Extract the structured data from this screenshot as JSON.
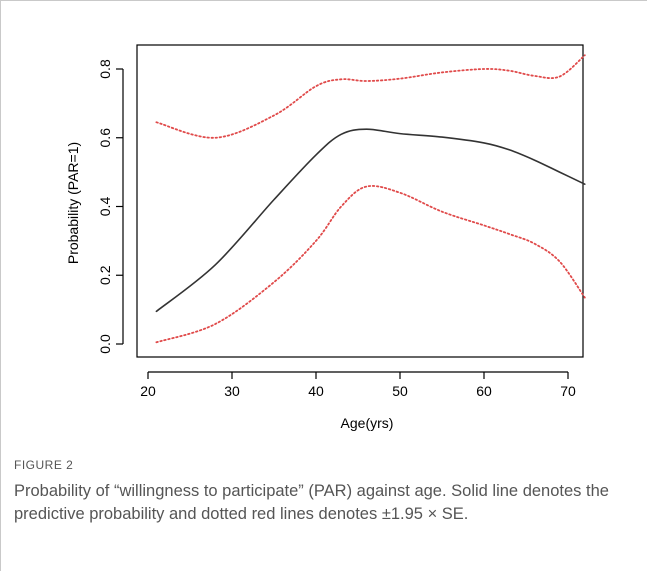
{
  "figure": {
    "label": "FIGURE 2",
    "caption": "Probability of “willingness to participate” (PAR) against age. Solid line denotes the predictive probability and dotted red lines denotes ±1.95 × SE."
  },
  "colors": {
    "prediction_line": "#333333",
    "confidence_line": "#e04a4a",
    "axis": "#000000"
  },
  "chart_data": {
    "type": "line",
    "xlabel": "Age(yrs)",
    "ylabel": "Probability (PAR=1)",
    "xlim": [
      21,
      72
    ],
    "ylim": [
      0,
      0.8
    ],
    "xticks": [
      "20",
      "30",
      "40",
      "50",
      "60",
      "70"
    ],
    "yticks": [
      "0.0",
      "0.2",
      "0.4",
      "0.6",
      "0.8"
    ],
    "grid": false,
    "x": [
      21,
      28,
      35,
      40,
      43,
      46,
      50,
      55,
      60,
      63,
      66,
      69,
      72
    ],
    "series": [
      {
        "style": "solid",
        "values": [
          0.095,
          0.23,
          0.42,
          0.55,
          0.61,
          0.625,
          0.612,
          0.602,
          0.585,
          0.565,
          0.535,
          0.5,
          0.465
        ]
      },
      {
        "style": "dotted-upper",
        "values": [
          0.645,
          0.6,
          0.665,
          0.75,
          0.77,
          0.765,
          0.772,
          0.79,
          0.8,
          0.795,
          0.78,
          0.778,
          0.84
        ]
      },
      {
        "style": "dotted-lower",
        "values": [
          0.005,
          0.058,
          0.18,
          0.3,
          0.4,
          0.458,
          0.44,
          0.385,
          0.345,
          0.32,
          0.292,
          0.24,
          0.135
        ]
      }
    ]
  }
}
